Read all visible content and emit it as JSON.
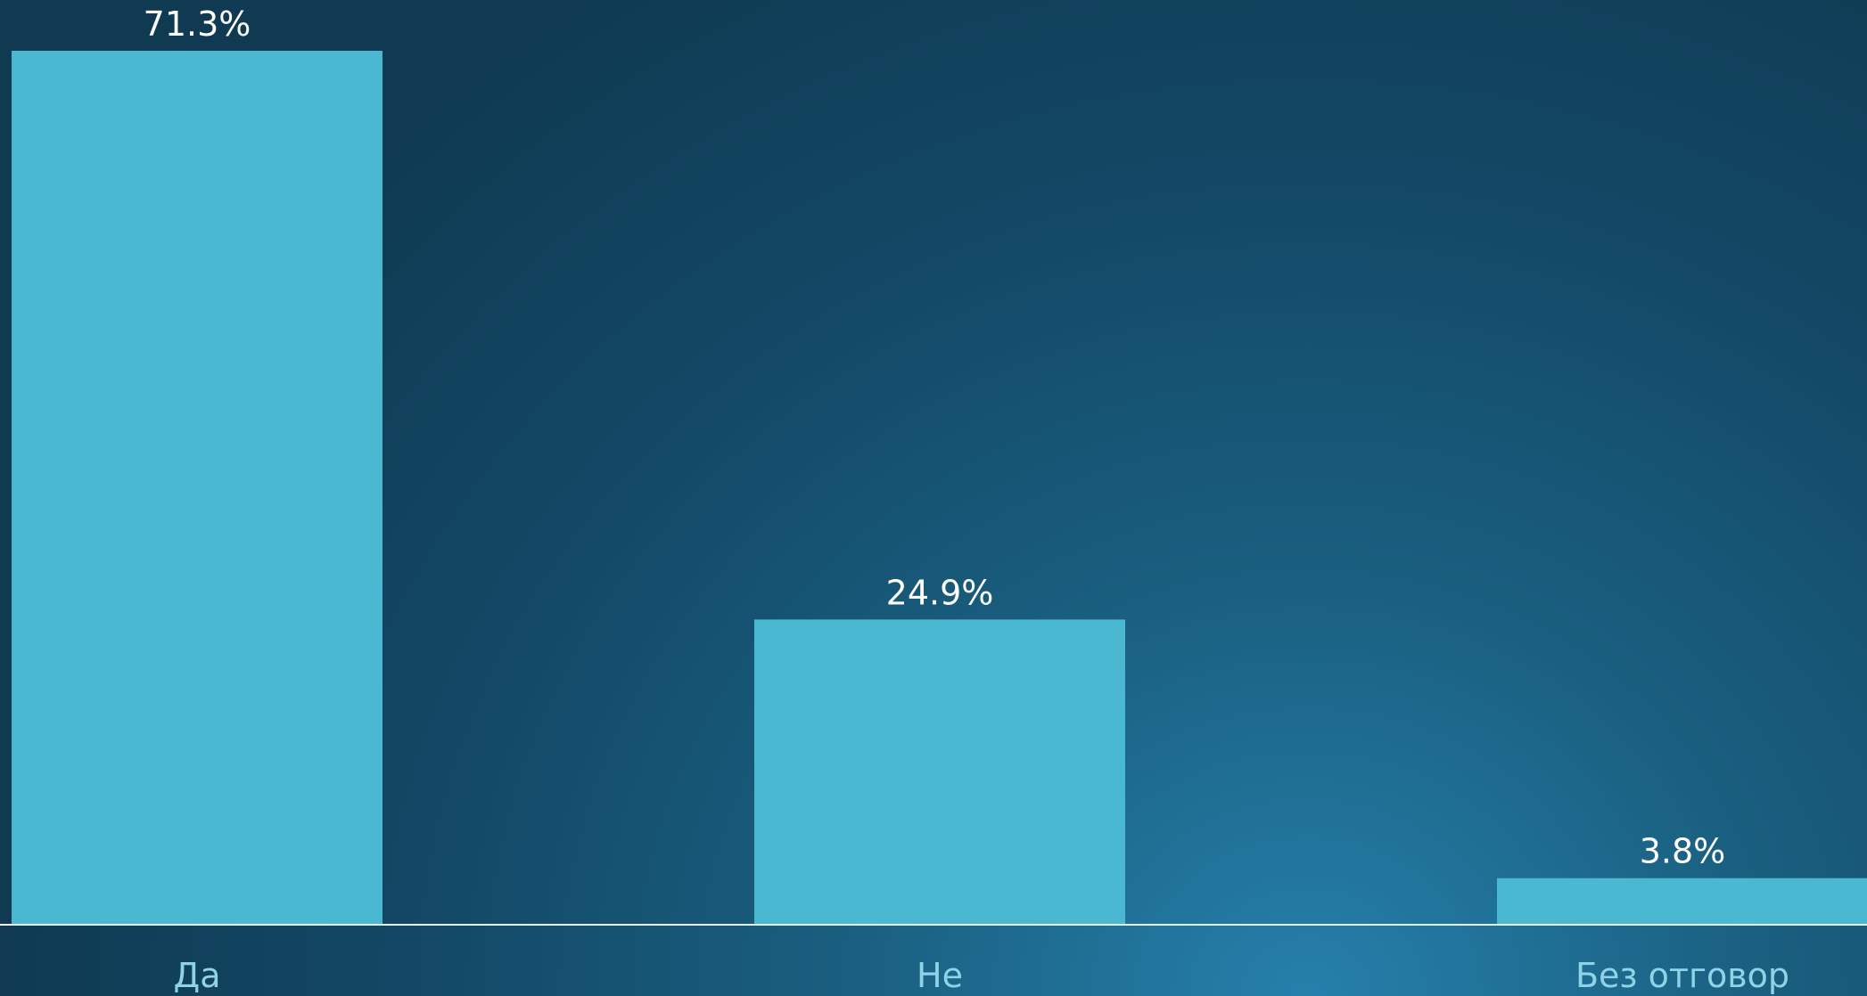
{
  "chart_data": {
    "type": "bar",
    "categories": [
      "Да",
      "Не",
      "Без отговор"
    ],
    "values": [
      71.3,
      24.9,
      3.8
    ],
    "value_labels": [
      "71.3%",
      "24.9%",
      "3.8%"
    ],
    "ylim": [
      0,
      71.3
    ],
    "grid": false,
    "legend": "none"
  },
  "colors": {
    "bar": "#4ab8d1",
    "value_text": "#ffffff",
    "category_text": "#8fd3e6",
    "axis": "#e8f4f8"
  }
}
